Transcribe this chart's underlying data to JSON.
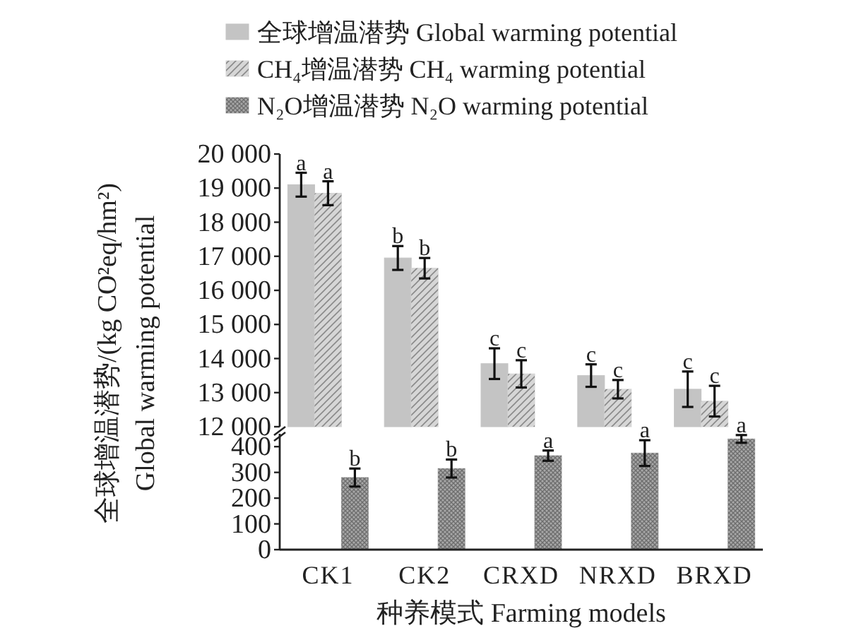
{
  "chart_data": [
    {
      "type": "bar",
      "categories": [
        "CK1",
        "CK2",
        "CRXD",
        "NRXD",
        "BRXD"
      ],
      "ylabel": "全球增温潜势/(kg CO²eq/hm²)\nGlobal warming potential",
      "ylim": [
        12000,
        20000
      ],
      "yticks": [
        {
          "value": 12000,
          "label": "12 000"
        },
        {
          "value": 13000,
          "label": "13 000"
        },
        {
          "value": 14000,
          "label": "14 000"
        },
        {
          "value": 15000,
          "label": "15 000"
        },
        {
          "value": 16000,
          "label": "16 000"
        },
        {
          "value": 17000,
          "label": "17 000"
        },
        {
          "value": 18000,
          "label": "18 000"
        },
        {
          "value": 19000,
          "label": "19 000"
        },
        {
          "value": 20000,
          "label": "20 000"
        }
      ],
      "tick_labels": "y",
      "legend": "top",
      "series": [
        {
          "name": "全球增温潜势 Global warming potential",
          "color": "#c4c4c4",
          "values": [
            19100,
            16950,
            13850,
            13500,
            13100
          ],
          "errors": [
            350,
            350,
            450,
            330,
            520
          ]
        },
        {
          "name": "CH₄增温潜势  CH₄ warming potential",
          "color": "#d6d6d6",
          "values": [
            18850,
            16650,
            13550,
            13100,
            12750
          ],
          "errors": [
            350,
            300,
            400,
            270,
            450
          ]
        }
      ],
      "annotations": [
        {
          "text": "a",
          "x": "CK1",
          "y": 19100
        },
        {
          "text": "a",
          "x": "CK1",
          "y": 18850
        },
        {
          "text": "b",
          "x": "CK2",
          "y": 16950
        },
        {
          "text": "b",
          "x": "CK2",
          "y": 16650
        },
        {
          "text": "c",
          "x": "CRXD",
          "y": 13850
        },
        {
          "text": "c",
          "x": "CRXD",
          "y": 13550
        },
        {
          "text": "c",
          "x": "NRXD",
          "y": 13500
        },
        {
          "text": "c",
          "x": "NRXD",
          "y": 13100
        },
        {
          "text": "c",
          "x": "BRXD",
          "y": 13100
        },
        {
          "text": "c",
          "x": "BRXD",
          "y": 12750
        }
      ]
    },
    {
      "type": "bar",
      "categories": [
        "CK1",
        "CK2",
        "CRXD",
        "NRXD",
        "BRXD"
      ],
      "xlabel": "种养模式 Farming models",
      "ylim": [
        0,
        450
      ],
      "yticks": [
        0,
        100,
        200,
        300,
        400
      ],
      "legend": "top",
      "series": [
        {
          "name": "N₂O增温潜势  N₂O warming potential",
          "color": "#a8a8a8",
          "values": [
            280,
            315,
            365,
            375,
            430
          ],
          "errors": [
            35,
            35,
            20,
            50,
            15
          ]
        }
      ],
      "annotations": [
        "b",
        "b",
        "a",
        "a",
        "a"
      ]
    }
  ]
}
